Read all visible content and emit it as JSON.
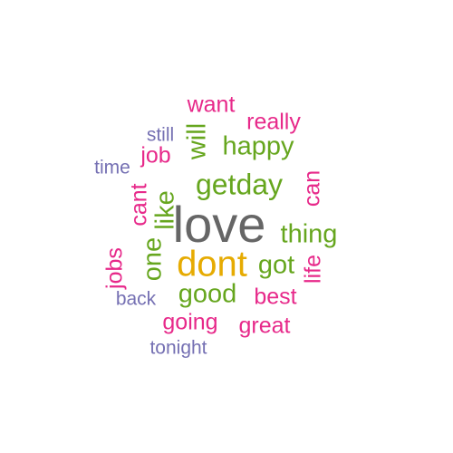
{
  "words": [
    {
      "text": "love",
      "color": "#666666",
      "weight": 5
    },
    {
      "text": "dont",
      "color": "#E6AB02",
      "weight": 4
    },
    {
      "text": "getday",
      "color": "#66A61E",
      "weight": 3
    },
    {
      "text": "happy",
      "color": "#66A61E",
      "weight": 3
    },
    {
      "text": "thing",
      "color": "#66A61E",
      "weight": 3
    },
    {
      "text": "got",
      "color": "#66A61E",
      "weight": 3
    },
    {
      "text": "good",
      "color": "#66A61E",
      "weight": 3
    },
    {
      "text": "one",
      "color": "#66A61E",
      "weight": 3
    },
    {
      "text": "like",
      "color": "#66A61E",
      "weight": 3
    },
    {
      "text": "will",
      "color": "#66A61E",
      "weight": 3
    },
    {
      "text": "best",
      "color": "#E7298A",
      "weight": 2
    },
    {
      "text": "want",
      "color": "#E7298A",
      "weight": 2
    },
    {
      "text": "really",
      "color": "#E7298A",
      "weight": 2
    },
    {
      "text": "job",
      "color": "#E7298A",
      "weight": 2
    },
    {
      "text": "can",
      "color": "#E7298A",
      "weight": 2
    },
    {
      "text": "cant",
      "color": "#E7298A",
      "weight": 2
    },
    {
      "text": "jobs",
      "color": "#E7298A",
      "weight": 2
    },
    {
      "text": "life",
      "color": "#E7298A",
      "weight": 2
    },
    {
      "text": "going",
      "color": "#E7298A",
      "weight": 2
    },
    {
      "text": "great",
      "color": "#E7298A",
      "weight": 2
    },
    {
      "text": "still",
      "color": "#7570B3",
      "weight": 1
    },
    {
      "text": "time",
      "color": "#7570B3",
      "weight": 1
    },
    {
      "text": "back",
      "color": "#7570B3",
      "weight": 1
    },
    {
      "text": "tonight",
      "color": "#7570B3",
      "weight": 1
    }
  ]
}
